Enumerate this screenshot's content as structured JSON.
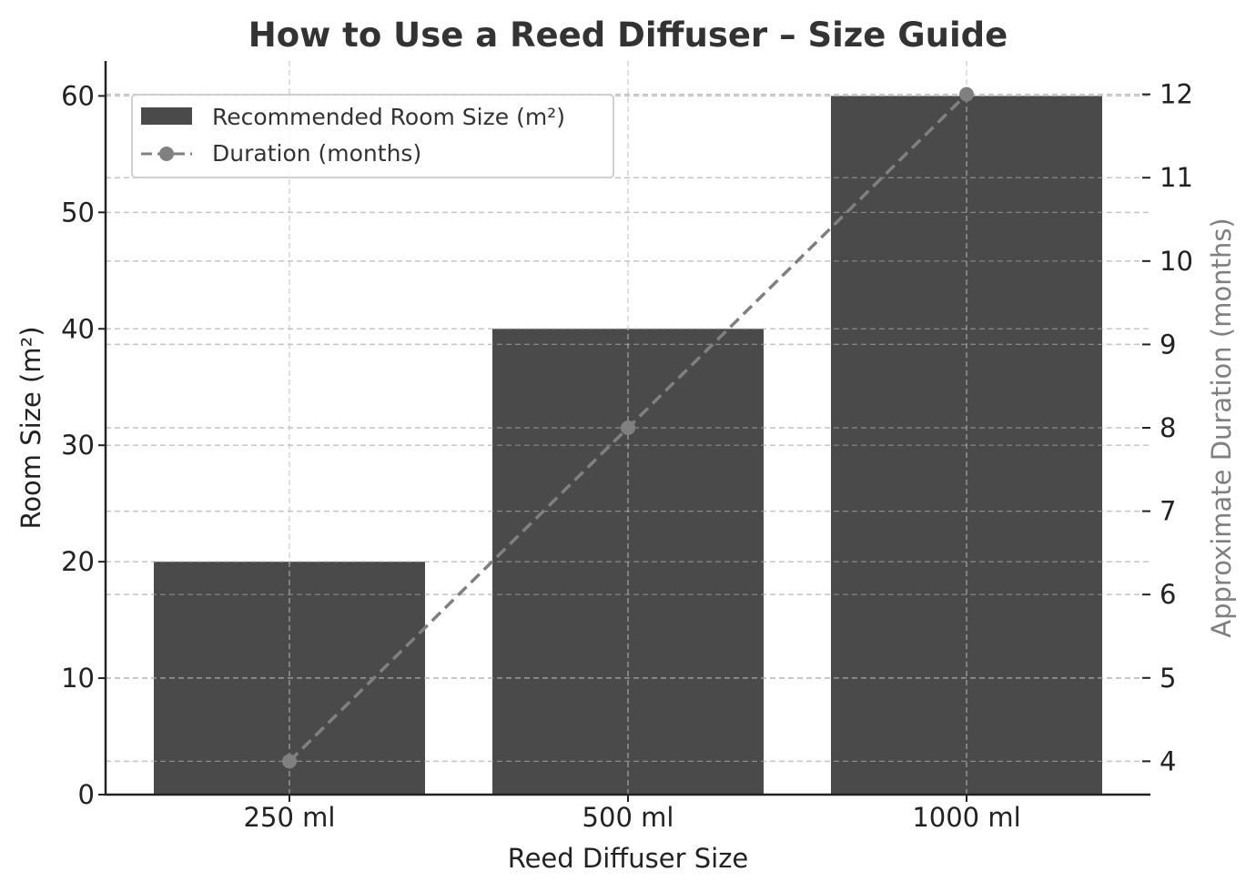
{
  "chart_data": {
    "type": "bar",
    "title": "How to Use a Reed Diffuser – Size Guide",
    "xlabel": "Reed Diffuser Size",
    "ylabel": "Room Size (m²)",
    "ylabel_right": "Approximate Duration (months)",
    "categories": [
      "250 ml",
      "500 ml",
      "1000 ml"
    ],
    "series": [
      {
        "name": "Recommended Room Size (m²)",
        "type": "bar",
        "axis": "left",
        "values": [
          20,
          40,
          60
        ],
        "color": "#4a4a4a"
      },
      {
        "name": "Duration (months)",
        "type": "line",
        "axis": "right",
        "style": "dashed",
        "marker": "circle",
        "values": [
          4,
          8,
          12
        ],
        "color": "#808080"
      }
    ],
    "ylim": [
      0,
      63
    ],
    "ylim_right": [
      3.6,
      12.4
    ],
    "yticks": [
      0,
      10,
      20,
      30,
      40,
      50,
      60
    ],
    "yticks_right": [
      4,
      5,
      6,
      7,
      8,
      9,
      10,
      11,
      12
    ],
    "grid": true,
    "legend_position": "upper left"
  },
  "legend": {
    "items": [
      {
        "label": "Recommended Room Size (m²)",
        "kind": "bar"
      },
      {
        "label": "Duration (months)",
        "kind": "line"
      }
    ]
  },
  "colors": {
    "bar": "#4a4a4a",
    "line": "#808080",
    "grid": "#cccccc",
    "axis": "#222222",
    "title": "#333333"
  }
}
